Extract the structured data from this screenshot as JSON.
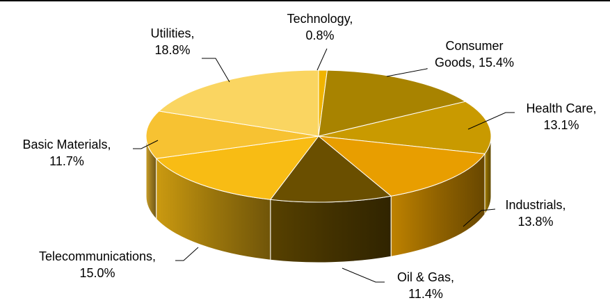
{
  "chart_data": {
    "type": "pie",
    "title": "",
    "three_d": true,
    "start_angle_deg": 0,
    "slices": [
      {
        "label": "Technology",
        "value": 0.8,
        "value_text": "0.8%",
        "color": "#F0B400",
        "label_lines": [
          "Technology,",
          "0.8%"
        ]
      },
      {
        "label": "Consumer Goods",
        "value": 15.4,
        "value_text": "15.4%",
        "color": "#A88300",
        "label_lines": [
          "Consumer",
          "Goods, 15.4%"
        ]
      },
      {
        "label": "Health Care",
        "value": 13.1,
        "value_text": "13.1%",
        "color": "#C99A00",
        "label_lines": [
          "Health Care,",
          "13.1%"
        ]
      },
      {
        "label": "Industrials",
        "value": 13.8,
        "value_text": "13.8%",
        "color": "#E89E00",
        "label_lines": [
          "Industrials,",
          "13.8%"
        ]
      },
      {
        "label": "Oil & Gas",
        "value": 11.4,
        "value_text": "11.4%",
        "color": "#6A4F00",
        "label_lines": [
          "Oil & Gas,",
          "11.4%"
        ]
      },
      {
        "label": "Telecommunications",
        "value": 15.0,
        "value_text": "15.0%",
        "color": "#F8BC14",
        "label_lines": [
          "Telecommunications,",
          "15.0%"
        ]
      },
      {
        "label": "Basic Materials",
        "value": 11.7,
        "value_text": "11.7%",
        "color": "#F7C232",
        "label_lines": [
          "Basic Materials,",
          "11.7%"
        ]
      },
      {
        "label": "Utilities",
        "value": 18.8,
        "value_text": "18.8%",
        "color": "#FAD561",
        "label_lines": [
          "Utilities,",
          "18.8%"
        ]
      }
    ]
  }
}
